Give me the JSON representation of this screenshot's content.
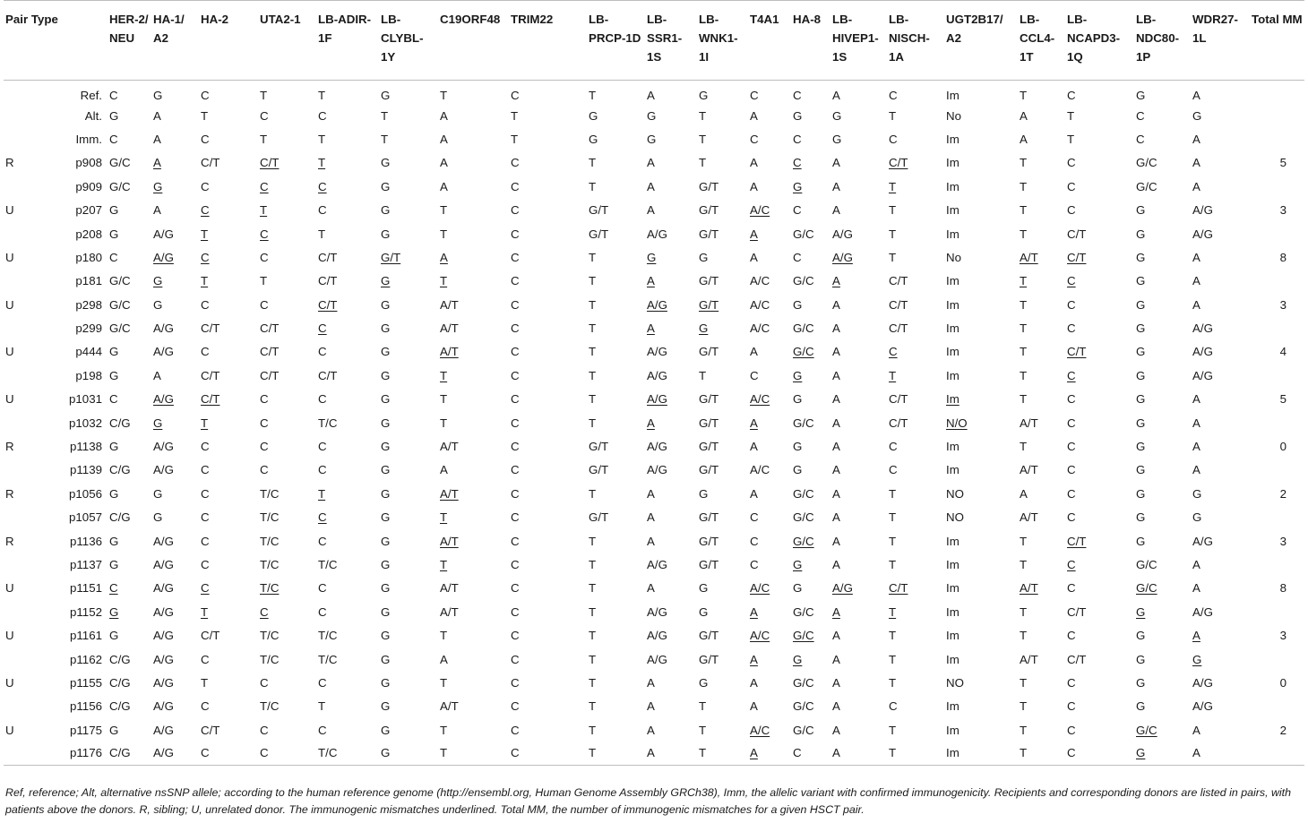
{
  "headers": [
    "Pair Type",
    "",
    "HER-2/ NEU",
    "HA-1/ A2",
    "HA-2",
    "UTA2-1",
    "LB-ADIR-1F",
    "LB-CLYBL-1Y",
    "C19ORF48",
    "TRIM22",
    "LB-PRCP-1D",
    "LB-SSR1-1S",
    "LB-WNK1-1I",
    "T4A1",
    "HA-8",
    "LB-HIVEP1-1S",
    "LB-NISCH-1A",
    "UGT2B17/ A2",
    "LB-CCL4-1T",
    "LB-NCAPD3-1Q",
    "LB-NDC80-1P",
    "WDR27-1L",
    "Total MM"
  ],
  "rows": [
    {
      "type": "",
      "id": "Ref.",
      "cells": [
        "C",
        "G",
        "C",
        "T",
        "T",
        "G",
        "T",
        "C",
        "T",
        "A",
        "G",
        "C",
        "C",
        "A",
        "C",
        "Im",
        "T",
        "C",
        "G",
        "A"
      ],
      "total": ""
    },
    {
      "type": "",
      "id": "Alt.",
      "cells": [
        "G",
        "A",
        "T",
        "C",
        "C",
        "T",
        "A",
        "T",
        "G",
        "G",
        "T",
        "A",
        "G",
        "G",
        "T",
        "No",
        "A",
        "T",
        "C",
        "G"
      ],
      "total": ""
    },
    {
      "type": "",
      "id": "Imm.",
      "cells": [
        "C",
        "A",
        "C",
        "T",
        "T",
        "T",
        "A",
        "T",
        "G",
        "G",
        "T",
        "C",
        "C",
        "G",
        "C",
        "Im",
        "A",
        "T",
        "C",
        "A"
      ],
      "total": ""
    },
    {
      "type": "R",
      "id": "p908",
      "cells": [
        "G/C",
        "_A",
        "C/T",
        "_C/T",
        "_T",
        "G",
        "A",
        "C",
        "T",
        "A",
        "T",
        "A",
        "_C",
        "A",
        "_C/T",
        "Im",
        "T",
        "C",
        "G/C",
        "A"
      ],
      "total": "5"
    },
    {
      "type": "",
      "id": "p909",
      "cells": [
        "G/C",
        "_G",
        "C",
        "_C",
        "_C",
        "G",
        "A",
        "C",
        "T",
        "A",
        "G/T",
        "A",
        "_G",
        "A",
        "_T",
        "Im",
        "T",
        "C",
        "G/C",
        "A"
      ],
      "total": ""
    },
    {
      "type": "U",
      "id": "p207",
      "cells": [
        "G",
        "A",
        "_C",
        "_T",
        "C",
        "G",
        "T",
        "C",
        "G/T",
        "A",
        "G/T",
        "_A/C",
        "C",
        "A",
        "T",
        "Im",
        "T",
        "C",
        "G",
        "A/G"
      ],
      "total": "3"
    },
    {
      "type": "",
      "id": "p208",
      "cells": [
        "G",
        "A/G",
        "_T",
        "_C",
        "T",
        "G",
        "T",
        "C",
        "G/T",
        "A/G",
        "G/T",
        "_A",
        "G/C",
        "A/G",
        "T",
        "Im",
        "T",
        "C/T",
        "G",
        "A/G"
      ],
      "total": ""
    },
    {
      "type": "U",
      "id": "p180",
      "cells": [
        "C",
        "_A/G",
        "_C",
        "C",
        "C/T",
        "_G/T",
        "_A",
        "C",
        "T",
        "_G",
        "G",
        "A",
        "C",
        "_A/G",
        "T",
        "No",
        "_A/T",
        "_C/T",
        "G",
        "A"
      ],
      "total": "8"
    },
    {
      "type": "",
      "id": "p181",
      "cells": [
        "G/C",
        "_G",
        "_T",
        "T",
        "C/T",
        "_G",
        "_T",
        "C",
        "T",
        "_A",
        "G/T",
        "A/C",
        "G/C",
        "_A",
        "C/T",
        "Im",
        "_T",
        "_C",
        "G",
        "A"
      ],
      "total": ""
    },
    {
      "type": "U",
      "id": "p298",
      "cells": [
        "G/C",
        "G",
        "C",
        "C",
        "_C/T",
        "G",
        "A/T",
        "C",
        "T",
        "_A/G",
        "_G/T",
        "A/C",
        "G",
        "A",
        "C/T",
        "Im",
        "T",
        "C",
        "G",
        "A"
      ],
      "total": "3"
    },
    {
      "type": "",
      "id": "p299",
      "cells": [
        "G/C",
        "A/G",
        "C/T",
        "C/T",
        "_C",
        "G",
        "A/T",
        "C",
        "T",
        "_A",
        "_G",
        "A/C",
        "G/C",
        "A",
        "C/T",
        "Im",
        "T",
        "C",
        "G",
        "A/G"
      ],
      "total": ""
    },
    {
      "type": "U",
      "id": "p444",
      "cells": [
        "G",
        "A/G",
        "C",
        "C/T",
        "C",
        "G",
        "_A/T",
        "C",
        "T",
        "A/G",
        "G/T",
        "A",
        "_G/C",
        "A",
        "_C",
        "Im",
        "T",
        "_C/T",
        "G",
        "A/G"
      ],
      "total": "4"
    },
    {
      "type": "",
      "id": "p198",
      "cells": [
        "G",
        "A",
        "C/T",
        "C/T",
        "C/T",
        "G",
        "_T",
        "C",
        "T",
        "A/G",
        "T",
        "C",
        "_G",
        "A",
        "_T",
        "Im",
        "T",
        "_C",
        "G",
        "A/G"
      ],
      "total": ""
    },
    {
      "type": "U",
      "id": "p1031",
      "cells": [
        "C",
        "_A/G",
        "_C/T",
        "C",
        "C",
        "G",
        "T",
        "C",
        "T",
        "_A/G",
        "G/T",
        "_A/C",
        "G",
        "A",
        "C/T",
        "_Im",
        "T",
        "C",
        "G",
        "A"
      ],
      "total": "5"
    },
    {
      "type": "",
      "id": "p1032",
      "cells": [
        "C/G",
        "_G",
        "_T",
        "C",
        "T/C",
        "G",
        "T",
        "C",
        "T",
        "_A",
        "G/T",
        "_A",
        "G/C",
        "A",
        "C/T",
        "_N/O",
        "A/T",
        "C",
        "G",
        "A"
      ],
      "total": ""
    },
    {
      "type": "R",
      "id": "p1138",
      "cells": [
        "G",
        "A/G",
        "C",
        "C",
        "C",
        "G",
        "A/T",
        "C",
        "G/T",
        "A/G",
        "G/T",
        "A",
        "G",
        "A",
        "C",
        "Im",
        "T",
        "C",
        "G",
        "A"
      ],
      "total": "0"
    },
    {
      "type": "",
      "id": "p1139",
      "cells": [
        "C/G",
        "A/G",
        "C",
        "C",
        "C",
        "G",
        "A",
        "C",
        "G/T",
        "A/G",
        "G/T",
        "A/C",
        "G",
        "A",
        "C",
        "Im",
        "A/T",
        "C",
        "G",
        "A"
      ],
      "total": ""
    },
    {
      "type": "R",
      "id": "p1056",
      "cells": [
        "G",
        "G",
        "C",
        "T/C",
        "_T",
        "G",
        "_A/T",
        "C",
        "T",
        "A",
        "G",
        "A",
        "G/C",
        "A",
        "T",
        "NO",
        "A",
        "C",
        "G",
        "G"
      ],
      "total": "2"
    },
    {
      "type": "",
      "id": "p1057",
      "cells": [
        "C/G",
        "G",
        "C",
        "T/C",
        "_C",
        "G",
        "_T",
        "C",
        "G/T",
        "A",
        "G/T",
        "C",
        "G/C",
        "A",
        "T",
        "NO",
        "A/T",
        "C",
        "G",
        "G"
      ],
      "total": ""
    },
    {
      "type": "R",
      "id": "p1136",
      "cells": [
        "G",
        "A/G",
        "C",
        "T/C",
        "C",
        "G",
        "_A/T",
        "C",
        "T",
        "A",
        "G/T",
        "C",
        "_G/C",
        "A",
        "T",
        "Im",
        "T",
        "_C/T",
        "G",
        "A/G"
      ],
      "total": "3"
    },
    {
      "type": "",
      "id": "p1137",
      "cells": [
        "G",
        "A/G",
        "C",
        "T/C",
        "T/C",
        "G",
        "_T",
        "C",
        "T",
        "A/G",
        "G/T",
        "C",
        "_G",
        "A",
        "T",
        "Im",
        "T",
        "_C",
        "G/C",
        "A"
      ],
      "total": ""
    },
    {
      "type": "U",
      "id": "p1151",
      "cells": [
        "_C",
        "A/G",
        "_C",
        "_T/C",
        "C",
        "G",
        "A/T",
        "C",
        "T",
        "A",
        "G",
        "_A/C",
        "G",
        "_A/G",
        "_C/T",
        "Im",
        "_A/T",
        "C",
        "_G/C",
        "A"
      ],
      "total": "8"
    },
    {
      "type": "",
      "id": "p1152",
      "cells": [
        "_G",
        "A/G",
        "_T",
        "_C",
        "C",
        "G",
        "A/T",
        "C",
        "T",
        "A/G",
        "G",
        "_A",
        "G/C",
        "_A",
        "_T",
        "Im",
        "T",
        "C/T",
        "_G",
        "A/G"
      ],
      "total": ""
    },
    {
      "type": "U",
      "id": "p1161",
      "cells": [
        "G",
        "A/G",
        "C/T",
        "T/C",
        "T/C",
        "G",
        "T",
        "C",
        "T",
        "A/G",
        "G/T",
        "_A/C",
        "_G/C",
        "A",
        "T",
        "Im",
        "T",
        "C",
        "G",
        "_A"
      ],
      "total": "3"
    },
    {
      "type": "",
      "id": "p1162",
      "cells": [
        "C/G",
        "A/G",
        "C",
        "T/C",
        "T/C",
        "G",
        "A",
        "C",
        "T",
        "A/G",
        "G/T",
        "_A",
        "_G",
        "A",
        "T",
        "Im",
        "A/T",
        "C/T",
        "G",
        "_G"
      ],
      "total": ""
    },
    {
      "type": "U",
      "id": "p1155",
      "cells": [
        "C/G",
        "A/G",
        "T",
        "C",
        "C",
        "G",
        "T",
        "C",
        "T",
        "A",
        "G",
        "A",
        "G/C",
        "A",
        "T",
        "NO",
        "T",
        "C",
        "G",
        "A/G"
      ],
      "total": "0"
    },
    {
      "type": "",
      "id": "p1156",
      "cells": [
        "C/G",
        "A/G",
        "C",
        "T/C",
        "T",
        "G",
        "A/T",
        "C",
        "T",
        "A",
        "T",
        "A",
        "G/C",
        "A",
        "C",
        "Im",
        "T",
        "C",
        "G",
        "A/G"
      ],
      "total": ""
    },
    {
      "type": "U",
      "id": "p1175",
      "cells": [
        "G",
        "A/G",
        "C/T",
        "C",
        "C",
        "G",
        "T",
        "C",
        "T",
        "A",
        "T",
        "_A/C",
        "G/C",
        "A",
        "T",
        "Im",
        "T",
        "C",
        "_G/C",
        "A"
      ],
      "total": "2"
    },
    {
      "type": "",
      "id": "p1176",
      "cells": [
        "C/G",
        "A/G",
        "C",
        "C",
        "T/C",
        "G",
        "T",
        "C",
        "T",
        "A",
        "T",
        "_A",
        "C",
        "A",
        "T",
        "Im",
        "T",
        "C",
        "_G",
        "A"
      ],
      "total": ""
    }
  ],
  "footnote": "Ref, reference; Alt, alternative nsSNP allele; according to the human reference genome (http://ensembl.org, Human Genome Assembly GRCh38), Imm, the allelic variant with confirmed immunogenicity. Recipients and corresponding donors are listed in pairs, with patients above the donors. R, sibling; U, unrelated donor. The immunogenic mismatches underlined. Total MM, the number of immunogenic mismatches for a given HSCT pair."
}
